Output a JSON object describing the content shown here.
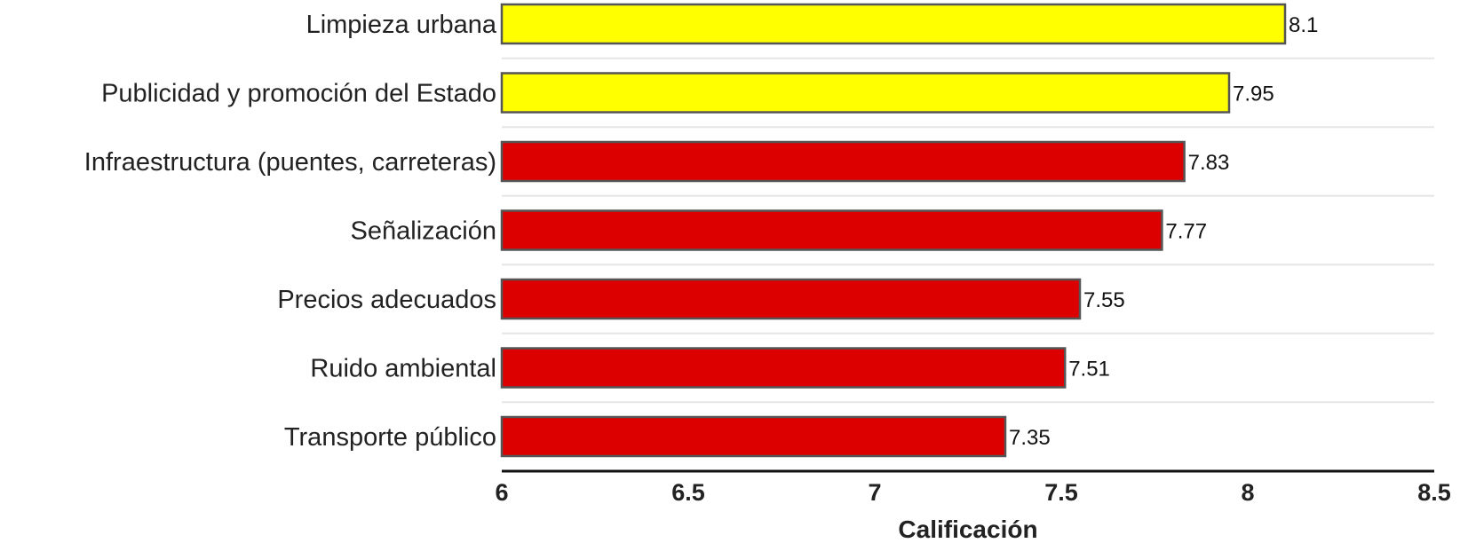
{
  "chart_data": {
    "type": "bar",
    "orientation": "horizontal",
    "categories": [
      "Limpieza urbana",
      "Publicidad y promoción del Estado",
      "Infraestructura (puentes, carreteras)",
      "Señalización",
      "Precios adecuados",
      "Ruido ambiental",
      "Transporte público"
    ],
    "values": [
      8.1,
      7.95,
      7.83,
      7.77,
      7.55,
      7.51,
      7.35
    ],
    "value_labels": [
      "8.1",
      "7.95",
      "7.83",
      "7.77",
      "7.55",
      "7.51",
      "7.35"
    ],
    "bar_colors": [
      "#ffff00",
      "#ffff00",
      "#dd0000",
      "#dd0000",
      "#dd0000",
      "#dd0000",
      "#dd0000"
    ],
    "xlabel": "Calificación",
    "xlim": [
      6,
      8.5
    ],
    "xticks": [
      6,
      6.5,
      7,
      7.5,
      8,
      8.5
    ],
    "xtick_labels": [
      "6",
      "6.5",
      "7",
      "7.5",
      "8",
      "8.5"
    ],
    "grid": true,
    "legend": "none"
  }
}
